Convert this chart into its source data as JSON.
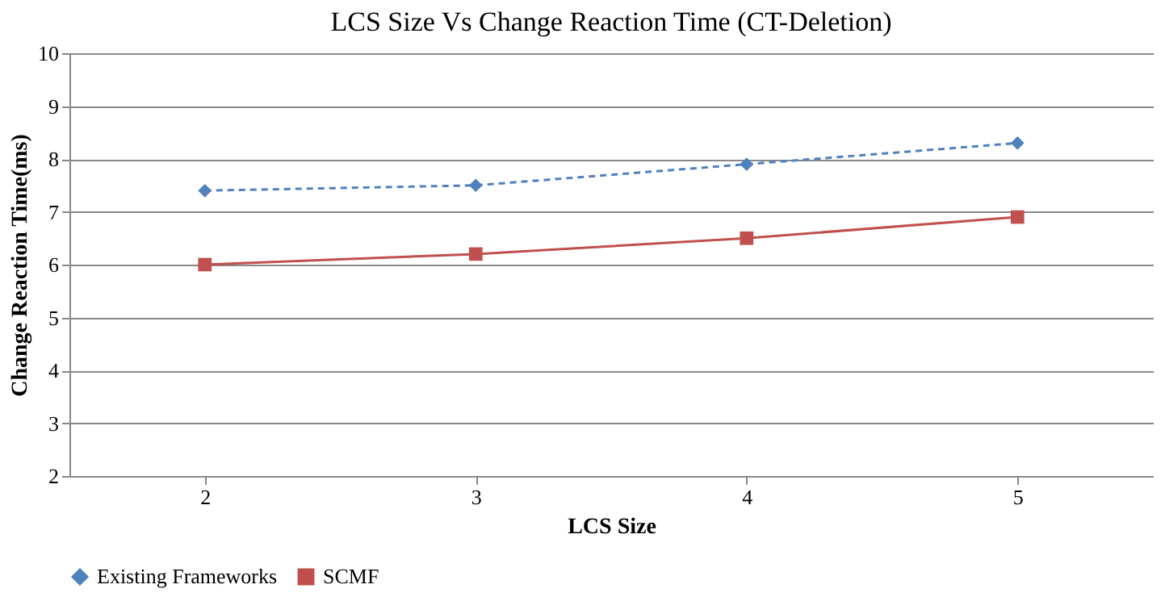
{
  "chart_data": {
    "type": "line",
    "title": "LCS Size Vs Change Reaction Time (CT-Deletion)",
    "xlabel": "LCS Size",
    "ylabel": "Change Reaction Time(ms)",
    "categories": [
      "2",
      "3",
      "4",
      "5"
    ],
    "series": [
      {
        "name": "Existing Frameworks",
        "color": "#4f81bd",
        "values": [
          7.4,
          7.5,
          7.9,
          8.3
        ],
        "marker": "diamond",
        "line_style": "dashed"
      },
      {
        "name": "SCMF",
        "color": "#c0504d",
        "values": [
          6.0,
          6.2,
          6.5,
          6.9
        ],
        "marker": "square",
        "line_style": "solid"
      }
    ],
    "ylim": [
      2,
      10
    ],
    "yticks": [
      2,
      3,
      4,
      5,
      6,
      7,
      8,
      9,
      10
    ],
    "grid": "y",
    "legend": "bottom"
  }
}
